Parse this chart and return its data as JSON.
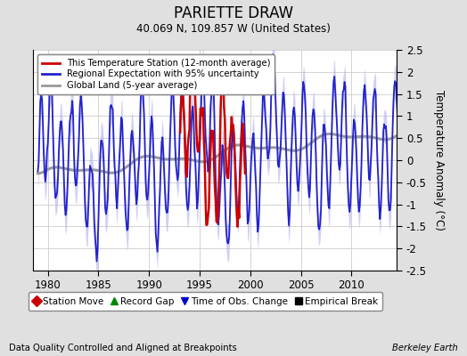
{
  "title": "PARIETTE DRAW",
  "subtitle": "40.069 N, 109.857 W (United States)",
  "ylabel": "Temperature Anomaly (°C)",
  "xlabel_note": "Data Quality Controlled and Aligned at Breakpoints",
  "credit": "Berkeley Earth",
  "ylim": [
    -2.5,
    2.5
  ],
  "xlim": [
    1978.5,
    2014.5
  ],
  "xticks": [
    1980,
    1985,
    1990,
    1995,
    2000,
    2005,
    2010
  ],
  "yticks": [
    -2.5,
    -2,
    -1.5,
    -1,
    -0.5,
    0,
    0.5,
    1,
    1.5,
    2,
    2.5
  ],
  "bg_color": "#e0e0e0",
  "plot_bg_color": "#ffffff",
  "regional_color": "#2222cc",
  "regional_fill_color": "#aaaaee",
  "station_color": "#cc0000",
  "global_color": "#999999",
  "legend_items": [
    {
      "label": "This Temperature Station (12-month average)",
      "color": "#cc0000",
      "lw": 2
    },
    {
      "label": "Regional Expectation with 95% uncertainty",
      "color": "#2222cc",
      "lw": 2
    },
    {
      "label": "Global Land (5-year average)",
      "color": "#999999",
      "lw": 2
    }
  ],
  "bottom_legend": [
    {
      "label": "Station Move",
      "marker": "D",
      "color": "#cc0000"
    },
    {
      "label": "Record Gap",
      "marker": "^",
      "color": "#008800"
    },
    {
      "label": "Time of Obs. Change",
      "marker": "v",
      "color": "#0000cc"
    },
    {
      "label": "Empirical Break",
      "marker": "s",
      "color": "#000000"
    }
  ]
}
